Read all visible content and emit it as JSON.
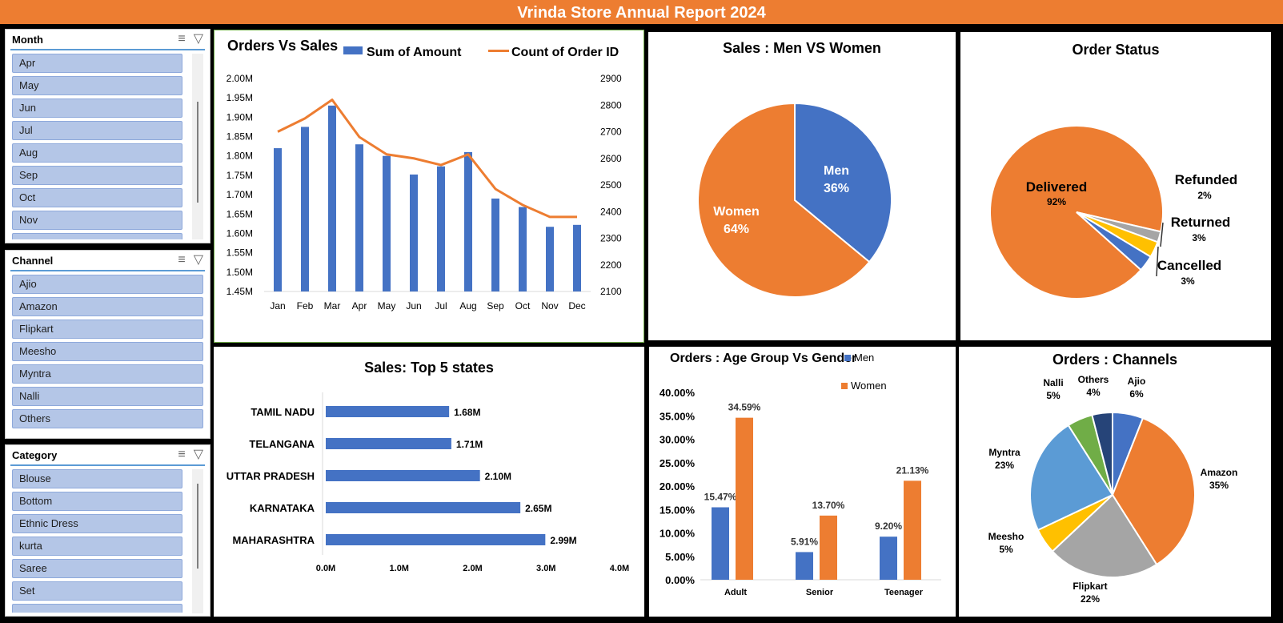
{
  "report_title": "Vrinda Store Annual Report 2024",
  "slicers": {
    "month": {
      "title": "Month",
      "items": [
        "Apr",
        "May",
        "Jun",
        "Jul",
        "Aug",
        "Sep",
        "Oct",
        "Nov"
      ]
    },
    "channel": {
      "title": "Channel",
      "items": [
        "Ajio",
        "Amazon",
        "Flipkart",
        "Meesho",
        "Myntra",
        "Nalli",
        "Others"
      ]
    },
    "category": {
      "title": "Category",
      "items": [
        "Blouse",
        "Bottom",
        "Ethnic Dress",
        "kurta",
        "Saree",
        "Set"
      ]
    }
  },
  "colors": {
    "blue": "#4472c4",
    "orange": "#ed7d31",
    "gray": "#a5a5a5",
    "yellow": "#ffc000",
    "light_blue": "#5b9bd5",
    "green": "#70ad47",
    "navy": "#264478"
  },
  "chart_data": [
    {
      "id": "orders_vs_sales",
      "type": "bar",
      "title": "Orders Vs Sales",
      "categories": [
        "Jan",
        "Feb",
        "Mar",
        "Apr",
        "May",
        "Jun",
        "Jul",
        "Aug",
        "Sep",
        "Oct",
        "Nov",
        "Dec"
      ],
      "series": [
        {
          "name": "Sum of Amount",
          "type": "bar",
          "axis": "left",
          "values": [
            1.82,
            1.875,
            1.93,
            1.83,
            1.8,
            1.752,
            1.773,
            1.81,
            1.69,
            1.668,
            1.617,
            1.622
          ]
        },
        {
          "name": "Count of Order ID",
          "type": "line",
          "axis": "right",
          "values": [
            2700,
            2750,
            2820,
            2680,
            2615,
            2600,
            2575,
            2615,
            2485,
            2425,
            2380,
            2380
          ]
        }
      ],
      "ylim": [
        1.45,
        2.0
      ],
      "yticks": [
        "2.00M",
        "1.95M",
        "1.90M",
        "1.85M",
        "1.80M",
        "1.75M",
        "1.70M",
        "1.65M",
        "1.60M",
        "1.55M",
        "1.50M",
        "1.45M"
      ],
      "y2lim": [
        2100,
        2900
      ],
      "y2ticks": [
        "2900",
        "2800",
        "2700",
        "2600",
        "2500",
        "2400",
        "2300",
        "2200",
        "2100"
      ],
      "legend": "top"
    },
    {
      "id": "sales_men_women",
      "type": "pie",
      "title": "Sales : Men VS Women",
      "slices": [
        {
          "label": "Men",
          "value": 36,
          "text": "36%"
        },
        {
          "label": "Women",
          "value": 64,
          "text": "64%"
        }
      ]
    },
    {
      "id": "order_status",
      "type": "pie",
      "title": "Order Status",
      "slices": [
        {
          "label": "Delivered",
          "value": 92,
          "text": "92%"
        },
        {
          "label": "Refunded",
          "value": 2,
          "text": "2%"
        },
        {
          "label": "Returned",
          "value": 3,
          "text": "3%"
        },
        {
          "label": "Cancelled",
          "value": 3,
          "text": "3%"
        }
      ]
    },
    {
      "id": "top5_states",
      "type": "bar",
      "orientation": "horizontal",
      "title": "Sales: Top 5 states",
      "categories": [
        "TAMIL NADU",
        "TELANGANA",
        "UTTAR PRADESH",
        "KARNATAKA",
        "MAHARASHTRA"
      ],
      "values": [
        1.68,
        1.71,
        2.1,
        2.65,
        2.99
      ],
      "value_labels": [
        "1.68M",
        "1.71M",
        "2.10M",
        "2.65M",
        "2.99M"
      ],
      "xlim": [
        0,
        4
      ],
      "xticks": [
        "0.0M",
        "1.0M",
        "2.0M",
        "3.0M",
        "4.0M"
      ]
    },
    {
      "id": "age_group_gender",
      "type": "bar",
      "title": "Orders : Age Group Vs Gender",
      "categories": [
        "Adult",
        "Senior",
        "Teenager"
      ],
      "series": [
        {
          "name": "Men",
          "values": [
            15.47,
            5.91,
            9.2
          ],
          "labels": [
            "15.47%",
            "5.91%",
            "9.20%"
          ]
        },
        {
          "name": "Women",
          "values": [
            34.59,
            13.7,
            21.13
          ],
          "labels": [
            "34.59%",
            "13.70%",
            "21.13%"
          ]
        }
      ],
      "ylim": [
        0,
        40
      ],
      "yticks": [
        "40.00%",
        "35.00%",
        "30.00%",
        "25.00%",
        "20.00%",
        "15.00%",
        "10.00%",
        "5.00%",
        "0.00%"
      ]
    },
    {
      "id": "orders_channels",
      "type": "pie",
      "title": "Orders : Channels",
      "slices": [
        {
          "label": "Ajio",
          "value": 6,
          "text": "6%"
        },
        {
          "label": "Amazon",
          "value": 35,
          "text": "35%"
        },
        {
          "label": "Flipkart",
          "value": 22,
          "text": "22%"
        },
        {
          "label": "Meesho",
          "value": 5,
          "text": "5%"
        },
        {
          "label": "Myntra",
          "value": 23,
          "text": "23%"
        },
        {
          "label": "Nalli",
          "value": 5,
          "text": "5%"
        },
        {
          "label": "Others",
          "value": 4,
          "text": "4%"
        }
      ]
    }
  ]
}
